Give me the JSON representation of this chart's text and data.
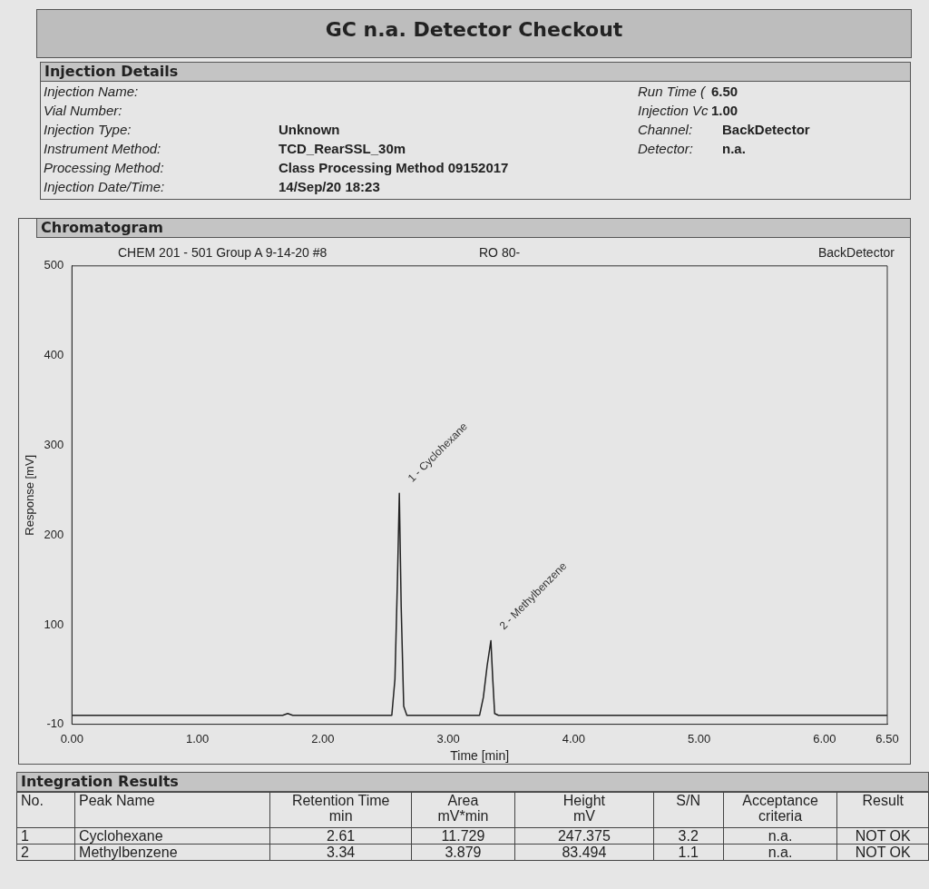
{
  "chart_data": {
    "type": "line",
    "title": "GC n.a. Detector Checkout",
    "xlabel": "Time [min]",
    "ylabel": "Response [mV]",
    "x": [
      0,
      1.68,
      1.72,
      1.76,
      2.55,
      2.575,
      2.595,
      2.61,
      2.625,
      2.645,
      2.67,
      3.25,
      3.28,
      3.31,
      3.34,
      3.355,
      3.37,
      3.4,
      6.5
    ],
    "series": [
      {
        "color": "#222222",
        "values": [
          0,
          0,
          2,
          0,
          0,
          40,
          150,
          247,
          120,
          10,
          0,
          0,
          20,
          55,
          83,
          40,
          2,
          0,
          0
        ]
      }
    ],
    "xlim": [
      0,
      6.5
    ],
    "xticks": [
      {
        "value": 0,
        "label": "0.00"
      },
      {
        "value": 1,
        "label": "1.00"
      },
      {
        "value": 2,
        "label": "2.00"
      },
      {
        "value": 3,
        "label": "3.00"
      },
      {
        "value": 4,
        "label": "4.00"
      },
      {
        "value": 5,
        "label": "5.00"
      },
      {
        "value": 6,
        "label": "6.00"
      },
      {
        "value": 6.5,
        "label": "6.50"
      }
    ],
    "ylim": [
      -10,
      500
    ],
    "yticks": [
      -10,
      100,
      200,
      300,
      400,
      500
    ],
    "grid": false,
    "marker": "none",
    "line_style": "solid",
    "annotations": [
      "Injection Details",
      "Injection Name:",
      "Vial Number:",
      "Injection Type:",
      "Instrument Method:",
      "Processing Method:",
      "Injection Date/Time:",
      "Unknown",
      "TCD_RearSSL_30m",
      "Class Processing Method 09152017",
      "14/Sep/20 18:23",
      "Run Time (",
      "6.50",
      "Injection Vc",
      "1.00",
      "Channel:",
      "BackDetector",
      "Detector:",
      "n.a.",
      "Chromatogram",
      "CHEM 201 - 501 Group A 9-14-20 #8",
      "RO 80-",
      "BackDetector",
      "Integration Results",
      "No.",
      "Peak Name",
      "Retention Time",
      "Area",
      "Height",
      "S/N",
      "Acceptance",
      "Result",
      "min",
      "mV*min",
      "mV",
      "criteria",
      "1",
      "Cyclohexane",
      "2.61",
      "11.729",
      "247.375",
      "3.2",
      "n.a.",
      "NOT OK",
      "2",
      "Methylbenzene",
      "3.34",
      "3.879",
      "83.494",
      "1.1",
      "n.a.",
      "NOT OK",
      {
        "text": "1 - Cyclohexane",
        "x": 2.61,
        "y": 247
      },
      {
        "text": "2 - Methylbenzene",
        "x": 3.34,
        "y": 83
      }
    ]
  }
}
